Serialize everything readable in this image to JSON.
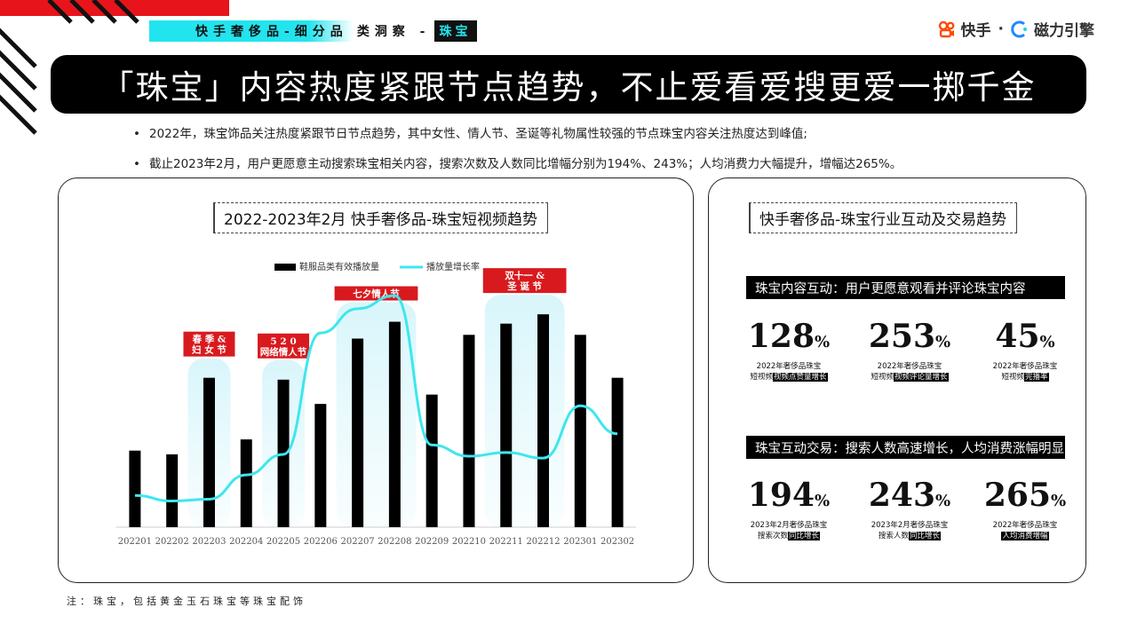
{
  "header": {
    "tag_cyan": "快手奢侈品-细分品",
    "tag_plain": "类洞察 -",
    "tag_highlight": "珠宝"
  },
  "logo": {
    "kuaishou": "快手",
    "separator": "·",
    "cili": "磁力引擎"
  },
  "title": "「珠宝」内容热度紧跟节点趋势，不止爱看爱搜更爱一掷千金",
  "bullets": [
    "2022年，珠宝饰品关注热度紧跟节日节点趋势，其中女性、情人节、圣诞等礼物属性较强的节点珠宝内容关注热度达到峰值;",
    "截止2023年2月，用户更愿意主动搜索珠宝相关内容，搜索次数及人数同比增幅分别为194%、243%；人均消费力大幅提升，增幅达265%。"
  ],
  "left_panel": {
    "title": "2022-2023年2月 快手奢侈品-珠宝短视频趋势"
  },
  "right_panel": {
    "title": "快手奢侈品-珠宝行业互动及交易趋势",
    "section1": {
      "heading": "珠宝内容互动：用户更愿意观看并评论珠宝内容",
      "stats": [
        {
          "value": "128",
          "unit": "%",
          "cap1": "2022年奢侈品珠宝",
          "cap2_plain": "短视频",
          "cap2_hl": "视频点赞量增长"
        },
        {
          "value": "253",
          "unit": "%",
          "cap1": "2022年奢侈品珠宝",
          "cap2_plain": "短视频",
          "cap2_hl": "视频评论量增长"
        },
        {
          "value": "45",
          "unit": "%",
          "cap1": "2022年奢侈品珠宝",
          "cap2_plain": "短视频",
          "cap2_hl": "完播率"
        }
      ]
    },
    "section2": {
      "heading": "珠宝互动交易：搜索人数高速增长，人均消费涨幅明显",
      "stats": [
        {
          "value": "194",
          "unit": "%",
          "cap1": "2023年2月奢侈品珠宝",
          "cap2_plain": "搜索次数",
          "cap2_hl": "同比增长"
        },
        {
          "value": "243",
          "unit": "%",
          "cap1": "2023年2月奢侈品珠宝",
          "cap2_plain": "搜索人数",
          "cap2_hl": "同比增长"
        },
        {
          "value": "265",
          "unit": "%",
          "cap1": "2022年奢侈品珠宝",
          "cap2_plain": "",
          "cap2_hl": "人均消费增幅"
        }
      ]
    }
  },
  "footnote": "注：珠宝，包括黄金玉石珠宝等珠宝配饰",
  "chart_data": {
    "type": "bar",
    "categories": [
      "202201",
      "202202",
      "202203",
      "202204",
      "202205",
      "202206",
      "202207",
      "202208",
      "202209",
      "202210",
      "202211",
      "202212",
      "202301",
      "202302"
    ],
    "series": [
      {
        "name": "鞋服品类有效播放量",
        "kind": "bar",
        "color": "#000000",
        "values": [
          41,
          39,
          80,
          47,
          79,
          66,
          101,
          110,
          71,
          103,
          109,
          114,
          103,
          80
        ]
      },
      {
        "name": "播放量增长率",
        "kind": "line",
        "color": "#3ee6ee",
        "values": [
          17,
          14,
          15,
          28,
          39,
          104,
          117,
          124,
          44,
          38,
          40,
          37,
          65,
          50
        ]
      }
    ],
    "ylim": [
      0,
      125
    ],
    "annotations": [
      {
        "text": [
          "春 季 &",
          "妇 女 节"
        ],
        "from": 2,
        "to": 2
      },
      {
        "text": [
          "5  2  0",
          "网络情人节"
        ],
        "from": 4,
        "to": 4
      },
      {
        "text": [
          "七夕情人节"
        ],
        "from": 6,
        "to": 7
      },
      {
        "text": [
          "双十一 &",
          "圣  诞  节"
        ],
        "from": 10,
        "to": 11
      }
    ],
    "colors": {
      "highlight": "#d9f6fb",
      "annotation_bg": "#d81a1f"
    }
  }
}
